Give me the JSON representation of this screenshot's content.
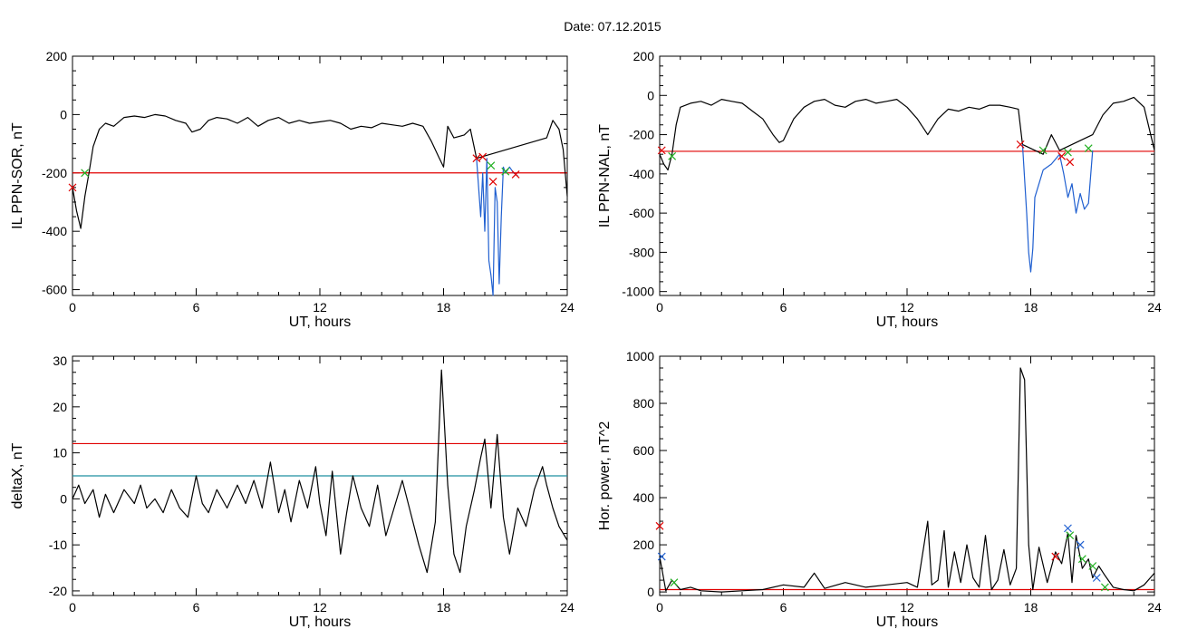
{
  "title": "Date:  07.12.2015",
  "chart_data": [
    {
      "type": "line",
      "ylabel": "IL PPN-SOR, nT",
      "xlabel": "UT, hours",
      "xlim": [
        0,
        24
      ],
      "ylim": [
        -620,
        200
      ],
      "xticks": [
        0,
        6,
        12,
        18,
        24
      ],
      "yticks": [
        -600,
        -400,
        -200,
        0,
        200
      ],
      "grid": false,
      "threshold_lines": [
        {
          "value": -200,
          "color": "#e00000"
        }
      ],
      "series": [
        {
          "color": "#000000",
          "x": [
            0.0,
            0.2,
            0.4,
            0.6,
            0.8,
            1.0,
            1.3,
            1.6,
            2.0,
            2.5,
            3.0,
            3.5,
            4.0,
            4.5,
            5.0,
            5.5,
            5.8,
            6.2,
            6.6,
            7.0,
            7.5,
            8.0,
            8.5,
            9.0,
            9.5,
            10.0,
            10.5,
            11.0,
            11.5,
            12.0,
            12.5,
            13.0,
            13.5,
            14.0,
            14.5,
            15.0,
            15.5,
            16.0,
            16.5,
            17.0,
            17.4,
            17.8,
            18.0,
            18.2,
            18.5,
            19.0,
            19.3,
            19.6,
            23.0,
            23.3,
            23.6,
            23.8,
            24.0
          ],
          "y": [
            -250,
            -330,
            -390,
            -280,
            -200,
            -110,
            -50,
            -30,
            -40,
            -10,
            -5,
            -10,
            0,
            -5,
            -20,
            -30,
            -60,
            -50,
            -20,
            -10,
            -15,
            -30,
            -10,
            -40,
            -20,
            -10,
            -30,
            -20,
            -30,
            -25,
            -20,
            -30,
            -50,
            -40,
            -45,
            -30,
            -35,
            -40,
            -30,
            -40,
            -90,
            -150,
            -180,
            -40,
            -80,
            -70,
            -50,
            -150,
            -80,
            -20,
            -50,
            -120,
            -280
          ]
        },
        {
          "color": "#1f5fd0",
          "x": [
            19.6,
            19.8,
            19.9,
            20.0,
            20.1,
            20.2,
            20.3,
            20.4,
            20.5,
            20.6,
            20.7,
            20.8,
            20.9,
            21.0,
            21.2,
            21.4,
            21.6
          ],
          "y": [
            -150,
            -350,
            -200,
            -400,
            -150,
            -500,
            -550,
            -620,
            -250,
            -300,
            -580,
            -350,
            -180,
            -200,
            -180,
            -200,
            -210
          ]
        }
      ],
      "markers": [
        {
          "x": 0.0,
          "y": -250,
          "color": "#e00000"
        },
        {
          "x": 0.6,
          "y": -200,
          "color": "#22b022"
        },
        {
          "x": 19.6,
          "y": -150,
          "color": "#e00000"
        },
        {
          "x": 19.9,
          "y": -145,
          "color": "#e00000"
        },
        {
          "x": 20.3,
          "y": -175,
          "color": "#22b022"
        },
        {
          "x": 20.4,
          "y": -230,
          "color": "#e00000"
        },
        {
          "x": 21.0,
          "y": -195,
          "color": "#22b022"
        },
        {
          "x": 21.5,
          "y": -205,
          "color": "#e00000"
        }
      ]
    },
    {
      "type": "line",
      "ylabel": "IL PPN-NAL, nT",
      "xlabel": "UT, hours",
      "xlim": [
        0,
        24
      ],
      "ylim": [
        -1020,
        200
      ],
      "xticks": [
        0,
        6,
        12,
        18,
        24
      ],
      "yticks": [
        -1000,
        -800,
        -600,
        -400,
        -200,
        0,
        200
      ],
      "grid": false,
      "threshold_lines": [
        {
          "value": -285,
          "color": "#e00000"
        }
      ],
      "series": [
        {
          "color": "#000000",
          "x": [
            0.0,
            0.2,
            0.4,
            0.6,
            0.8,
            1.0,
            1.5,
            2.0,
            2.5,
            3.0,
            3.5,
            4.0,
            4.5,
            5.0,
            5.5,
            5.8,
            6.0,
            6.5,
            7.0,
            7.5,
            8.0,
            8.5,
            9.0,
            9.5,
            10.0,
            10.5,
            11.0,
            11.5,
            12.0,
            12.5,
            13.0,
            13.5,
            14.0,
            14.5,
            15.0,
            15.5,
            16.0,
            16.5,
            17.0,
            17.4,
            17.6,
            18.6,
            19.0,
            19.4,
            21.0,
            21.5,
            22.0,
            22.5,
            23.0,
            23.5,
            24.0
          ],
          "y": [
            -300,
            -350,
            -380,
            -300,
            -150,
            -60,
            -40,
            -30,
            -50,
            -20,
            -30,
            -40,
            -80,
            -120,
            -200,
            -240,
            -230,
            -120,
            -60,
            -30,
            -20,
            -50,
            -60,
            -30,
            -20,
            -40,
            -30,
            -20,
            -60,
            -120,
            -200,
            -120,
            -70,
            -80,
            -60,
            -70,
            -50,
            -50,
            -60,
            -70,
            -250,
            -300,
            -200,
            -280,
            -200,
            -100,
            -40,
            -30,
            -10,
            -60,
            -280
          ]
        },
        {
          "color": "#1f5fd0",
          "x": [
            17.6,
            17.8,
            17.9,
            18.0,
            18.1,
            18.2,
            18.4,
            18.6,
            19.0,
            19.4,
            19.6,
            19.8,
            20.0,
            20.2,
            20.4,
            20.6,
            20.8,
            21.0
          ],
          "y": [
            -250,
            -600,
            -800,
            -900,
            -780,
            -520,
            -450,
            -380,
            -350,
            -300,
            -400,
            -520,
            -450,
            -600,
            -500,
            -580,
            -550,
            -280
          ]
        }
      ],
      "markers": [
        {
          "x": 0.1,
          "y": -280,
          "color": "#e00000"
        },
        {
          "x": 0.6,
          "y": -310,
          "color": "#22b022"
        },
        {
          "x": 17.5,
          "y": -250,
          "color": "#e00000"
        },
        {
          "x": 18.6,
          "y": -280,
          "color": "#22b022"
        },
        {
          "x": 19.5,
          "y": -310,
          "color": "#e00000"
        },
        {
          "x": 19.8,
          "y": -290,
          "color": "#22b022"
        },
        {
          "x": 19.9,
          "y": -340,
          "color": "#e00000"
        },
        {
          "x": 20.8,
          "y": -270,
          "color": "#22b022"
        }
      ]
    },
    {
      "type": "line",
      "ylabel": "deltaX, nT",
      "xlabel": "UT, hours",
      "xlim": [
        0,
        24
      ],
      "ylim": [
        -21,
        31
      ],
      "xticks": [
        0,
        6,
        12,
        18,
        24
      ],
      "yticks": [
        -20,
        -10,
        0,
        10,
        20,
        30
      ],
      "grid": false,
      "threshold_lines": [
        {
          "value": 12,
          "color": "#e00000"
        },
        {
          "value": 5,
          "color": "#1f8fa0"
        }
      ],
      "series": [
        {
          "color": "#000000",
          "x": [
            0,
            0.3,
            0.6,
            1.0,
            1.3,
            1.6,
            2.0,
            2.5,
            3.0,
            3.3,
            3.6,
            4.0,
            4.4,
            4.8,
            5.2,
            5.6,
            6.0,
            6.3,
            6.6,
            7.0,
            7.5,
            8.0,
            8.4,
            8.8,
            9.2,
            9.6,
            10.0,
            10.3,
            10.6,
            11.0,
            11.4,
            11.8,
            12.0,
            12.3,
            12.6,
            13.0,
            13.3,
            13.6,
            14.0,
            14.4,
            14.8,
            15.2,
            15.6,
            16.0,
            16.4,
            16.8,
            17.2,
            17.6,
            17.9,
            18.2,
            18.5,
            18.8,
            19.1,
            19.5,
            19.8,
            20.0,
            20.3,
            20.6,
            20.9,
            21.2,
            21.6,
            22.0,
            22.4,
            22.8,
            23.0,
            23.3,
            23.6,
            24.0
          ],
          "y": [
            0,
            3,
            -1,
            2,
            -4,
            1,
            -3,
            2,
            -1,
            3,
            -2,
            0,
            -3,
            2,
            -2,
            -4,
            5,
            -1,
            -3,
            2,
            -2,
            3,
            -1,
            4,
            -2,
            8,
            -3,
            2,
            -5,
            4,
            -2,
            7,
            -1,
            -8,
            6,
            -12,
            -3,
            5,
            -2,
            -6,
            3,
            -8,
            -2,
            4,
            -3,
            -10,
            -16,
            -5,
            28,
            3,
            -12,
            -16,
            -6,
            2,
            9,
            13,
            -2,
            14,
            -4,
            -12,
            -2,
            -6,
            2,
            7,
            3,
            -2,
            -6,
            -9
          ]
        }
      ]
    },
    {
      "type": "line",
      "ylabel": "Hor. power, nT^2",
      "xlabel": "UT, hours",
      "xlim": [
        0,
        24
      ],
      "ylim": [
        -15,
        1000
      ],
      "xticks": [
        0,
        6,
        12,
        18,
        24
      ],
      "yticks": [
        0,
        200,
        400,
        600,
        800,
        1000
      ],
      "grid": false,
      "threshold_lines": [
        {
          "value": 10,
          "color": "#e00000"
        }
      ],
      "series": [
        {
          "color": "#000000",
          "x": [
            0,
            0.3,
            0.6,
            1.0,
            1.5,
            2.0,
            3.0,
            4.0,
            5.0,
            6.0,
            7.0,
            7.5,
            8.0,
            9.0,
            10.0,
            11.0,
            12.0,
            12.5,
            13.0,
            13.2,
            13.5,
            13.8,
            14.0,
            14.3,
            14.6,
            14.9,
            15.2,
            15.5,
            15.8,
            16.1,
            16.4,
            16.7,
            17.0,
            17.3,
            17.5,
            17.7,
            17.9,
            18.1,
            18.4,
            18.8,
            19.2,
            19.5,
            19.8,
            20.0,
            20.2,
            20.5,
            20.8,
            21.0,
            21.3,
            21.6,
            22.0,
            22.5,
            23.0,
            23.5,
            24.0
          ],
          "y": [
            150,
            5,
            50,
            10,
            20,
            5,
            0,
            5,
            10,
            30,
            20,
            80,
            15,
            40,
            20,
            30,
            40,
            20,
            300,
            30,
            50,
            260,
            20,
            170,
            40,
            200,
            60,
            20,
            240,
            10,
            50,
            180,
            30,
            100,
            950,
            900,
            200,
            10,
            190,
            40,
            170,
            120,
            250,
            40,
            240,
            100,
            140,
            60,
            110,
            70,
            20,
            10,
            5,
            30,
            80
          ]
        }
      ],
      "markers": [
        {
          "x": 0.0,
          "y": 280,
          "color": "#e00000"
        },
        {
          "x": 0.1,
          "y": 150,
          "color": "#1f5fd0"
        },
        {
          "x": 0.7,
          "y": 40,
          "color": "#22b022"
        },
        {
          "x": 19.2,
          "y": 150,
          "color": "#e00000"
        },
        {
          "x": 19.8,
          "y": 270,
          "color": "#1f5fd0"
        },
        {
          "x": 19.9,
          "y": 240,
          "color": "#22b022"
        },
        {
          "x": 20.4,
          "y": 200,
          "color": "#1f5fd0"
        },
        {
          "x": 20.5,
          "y": 140,
          "color": "#22b022"
        },
        {
          "x": 21.0,
          "y": 110,
          "color": "#22b022"
        },
        {
          "x": 21.2,
          "y": 60,
          "color": "#1f5fd0"
        },
        {
          "x": 21.6,
          "y": 20,
          "color": "#22b022"
        }
      ]
    }
  ]
}
